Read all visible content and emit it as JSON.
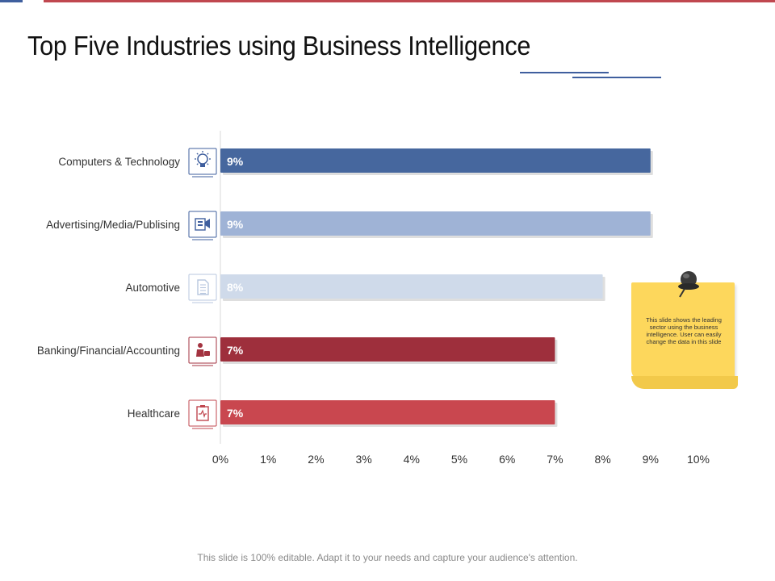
{
  "slide": {
    "title": "Top Five Industries using Business Intelligence",
    "footer": "This slide is 100% editable. Adapt it to your needs and capture your audience's attention.",
    "note": "This slide shows the leading sector using the business intelligence. User can easily change the data in this slide"
  },
  "chart_data": {
    "type": "bar",
    "orientation": "horizontal",
    "title": "",
    "xlabel": "",
    "ylabel": "",
    "categories": [
      "Computers & Technology",
      "Advertising/Media/Publising",
      "Automotive",
      "Banking/Financial/Accounting",
      "Healthcare"
    ],
    "values": [
      9,
      9,
      8,
      7,
      7
    ],
    "value_labels": [
      "9%",
      "9%",
      "8%",
      "7%",
      "7%"
    ],
    "bar_colors": [
      "#46679e",
      "#9fb3d6",
      "#cfdaea",
      "#9e2f3c",
      "#c9474f"
    ],
    "icons": [
      "lightbulb-gear-icon",
      "media-icon",
      "document-icon",
      "banker-icon",
      "medical-clipboard-icon"
    ],
    "icon_colors": [
      "#3f5f9e",
      "#3f5f9e",
      "#b8c7df",
      "#a33340",
      "#c0474f"
    ],
    "xlim": [
      0,
      10
    ],
    "xticks": [
      "0%",
      "1%",
      "2%",
      "3%",
      "4%",
      "5%",
      "6%",
      "7%",
      "8%",
      "9%",
      "10%"
    ],
    "grid": false,
    "legend": "none"
  }
}
